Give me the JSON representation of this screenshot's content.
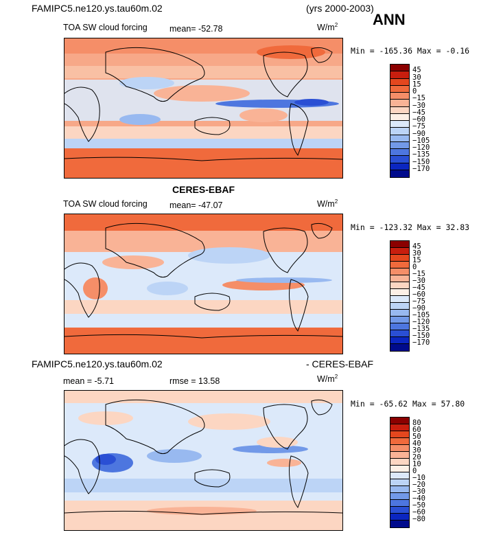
{
  "header": {
    "case_title": "FAMIPC5.ne120.ys.tau60m.02",
    "years": "(yrs 2000-2003)",
    "season": "ANN"
  },
  "panels": [
    {
      "variable": "TOA SW cloud forcing",
      "mean_label": "mean= -52.78",
      "units": "W/m",
      "units_exp": "2",
      "minmax": "Min = -165.36 Max =  -0.16",
      "colorbar": {
        "labels": [
          "45",
          "30",
          "15",
          "0",
          "-15",
          "-30",
          "-45",
          "-60",
          "-75",
          "-90",
          "-105",
          "-120",
          "-135",
          "-150",
          "-170"
        ],
        "colors": [
          "#8b0000",
          "#c81e0e",
          "#e4471e",
          "#f06a3c",
          "#f58e68",
          "#f9b396",
          "#fcd6c2",
          "#fdf0e6",
          "#dce9fa",
          "#bcd4f6",
          "#98b9f0",
          "#7299e8",
          "#4d76df",
          "#2a4fd4",
          "#0b26c0",
          "#000b8c"
        ]
      }
    },
    {
      "title": "CERES-EBAF",
      "variable": "TOA SW cloud forcing",
      "mean_label": "mean= -47.07",
      "units": "W/m",
      "units_exp": "2",
      "minmax": "Min = -123.32 Max =  32.83",
      "colorbar": {
        "labels": [
          "45",
          "30",
          "15",
          "0",
          "-15",
          "-30",
          "-45",
          "-60",
          "-75",
          "-90",
          "-105",
          "-120",
          "-135",
          "-150",
          "-170"
        ],
        "colors": [
          "#8b0000",
          "#c81e0e",
          "#e4471e",
          "#f06a3c",
          "#f58e68",
          "#f9b396",
          "#fcd6c2",
          "#fdf0e6",
          "#dce9fa",
          "#bcd4f6",
          "#98b9f0",
          "#7299e8",
          "#4d76df",
          "#2a4fd4",
          "#0b26c0",
          "#000b8c"
        ]
      }
    },
    {
      "title_left": "FAMIPC5.ne120.ys.tau60m.02",
      "title_right": "- CERES-EBAF",
      "mean_label": "mean =  -5.71",
      "rmse_label": "rmse =   13.58",
      "units": "W/m",
      "units_exp": "2",
      "minmax": "Min = -65.62 Max =  57.80",
      "colorbar": {
        "labels": [
          "80",
          "60",
          "50",
          "40",
          "30",
          "20",
          "10",
          "0",
          "-10",
          "-20",
          "-30",
          "-40",
          "-50",
          "-60",
          "-80"
        ],
        "colors": [
          "#8b0000",
          "#c81e0e",
          "#e4471e",
          "#f06a3c",
          "#f58e68",
          "#f9b396",
          "#fcd6c2",
          "#fdf0e6",
          "#dce9fa",
          "#bcd4f6",
          "#98b9f0",
          "#7299e8",
          "#4d76df",
          "#2a4fd4",
          "#0b26c0",
          "#000b8c"
        ]
      }
    }
  ]
}
